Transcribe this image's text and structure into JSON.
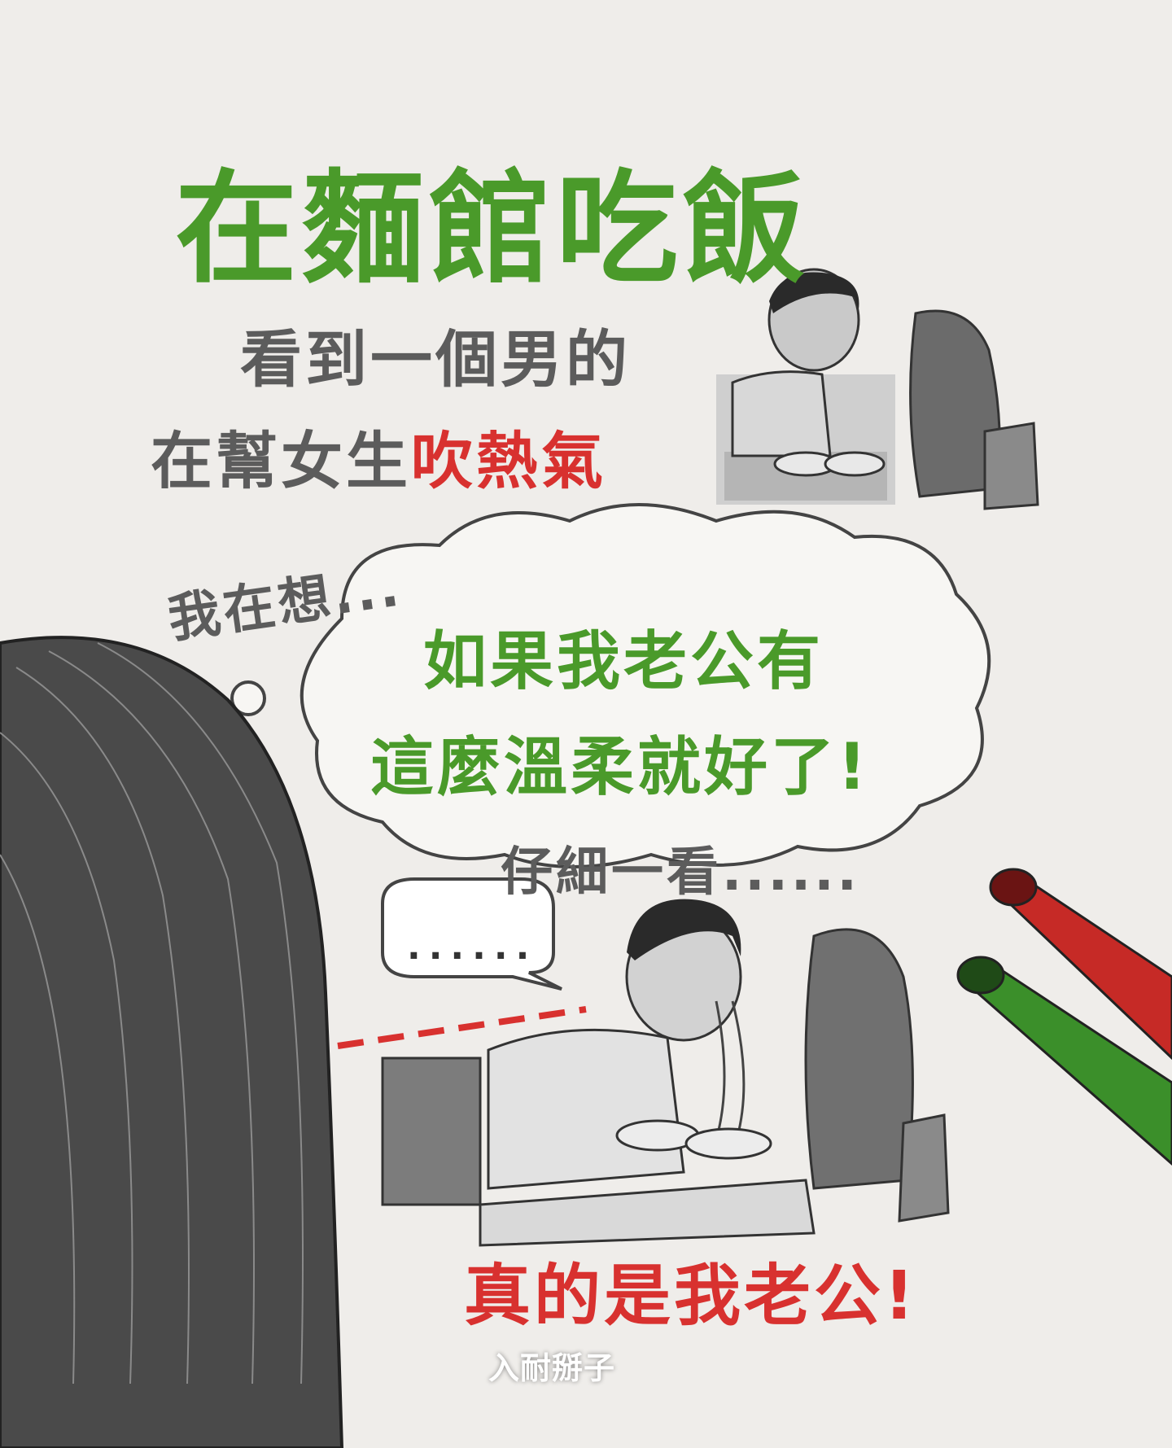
{
  "title": "在麵館吃飯",
  "narration": {
    "line1": "看到一個男的",
    "line2_prefix": "在幫女生",
    "line2_highlight": "吹熱氣",
    "line3": "我在想...",
    "thought_line1": "如果我老公有",
    "thought_line2": "這麼溫柔就好了!",
    "line4": "仔細一看......",
    "punchline": "真的是我老公!"
  },
  "speech_bubble": "......",
  "signature": "入耐掰子",
  "colors": {
    "title": "#4a9a2a",
    "narration": "#5c5c5c",
    "highlight": "#d8312f",
    "background": "#efedea"
  }
}
